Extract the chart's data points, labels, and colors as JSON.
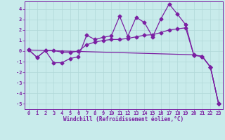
{
  "xlabel": "Windchill (Refroidissement éolien,°C)",
  "bg_color": "#c8ebeb",
  "line_color": "#7b1fa2",
  "grid_color": "#aadddd",
  "xlim": [
    -0.5,
    23.5
  ],
  "ylim": [
    -5.5,
    4.7
  ],
  "xticks": [
    0,
    1,
    2,
    3,
    4,
    5,
    6,
    7,
    8,
    9,
    10,
    11,
    12,
    13,
    14,
    15,
    16,
    17,
    18,
    19,
    20,
    21,
    22,
    23
  ],
  "yticks": [
    -5,
    -4,
    -3,
    -2,
    -1,
    0,
    1,
    2,
    3,
    4
  ],
  "line1_x": [
    0,
    1,
    2,
    3,
    4,
    5,
    6,
    7,
    8,
    9,
    10,
    11,
    12,
    13,
    14,
    15,
    16,
    17,
    18,
    19,
    20,
    21,
    22,
    23
  ],
  "line1_y": [
    0.1,
    -0.6,
    0.05,
    -1.1,
    -1.1,
    -0.7,
    -0.55,
    1.5,
    1.1,
    1.3,
    1.45,
    3.3,
    1.4,
    3.2,
    2.7,
    1.35,
    3.05,
    4.45,
    3.5,
    2.5,
    -0.4,
    -0.5,
    -1.5,
    -5.0
  ],
  "line2_x": [
    0,
    1,
    2,
    3,
    4,
    5,
    6,
    7,
    8,
    9,
    10,
    11,
    12,
    13,
    14,
    15,
    16,
    17,
    18,
    19,
    20,
    21,
    22,
    23
  ],
  "line2_y": [
    0.1,
    -0.6,
    0.05,
    0.05,
    -0.1,
    -0.15,
    0.0,
    0.6,
    0.85,
    1.0,
    1.1,
    1.1,
    1.2,
    1.35,
    1.5,
    1.55,
    1.75,
    2.0,
    2.1,
    2.2,
    -0.4,
    -0.5,
    -1.5,
    -5.0
  ],
  "line3_x": [
    0,
    20,
    21,
    22,
    23
  ],
  "line3_y": [
    0.1,
    -0.35,
    -0.5,
    -1.5,
    -5.0
  ]
}
